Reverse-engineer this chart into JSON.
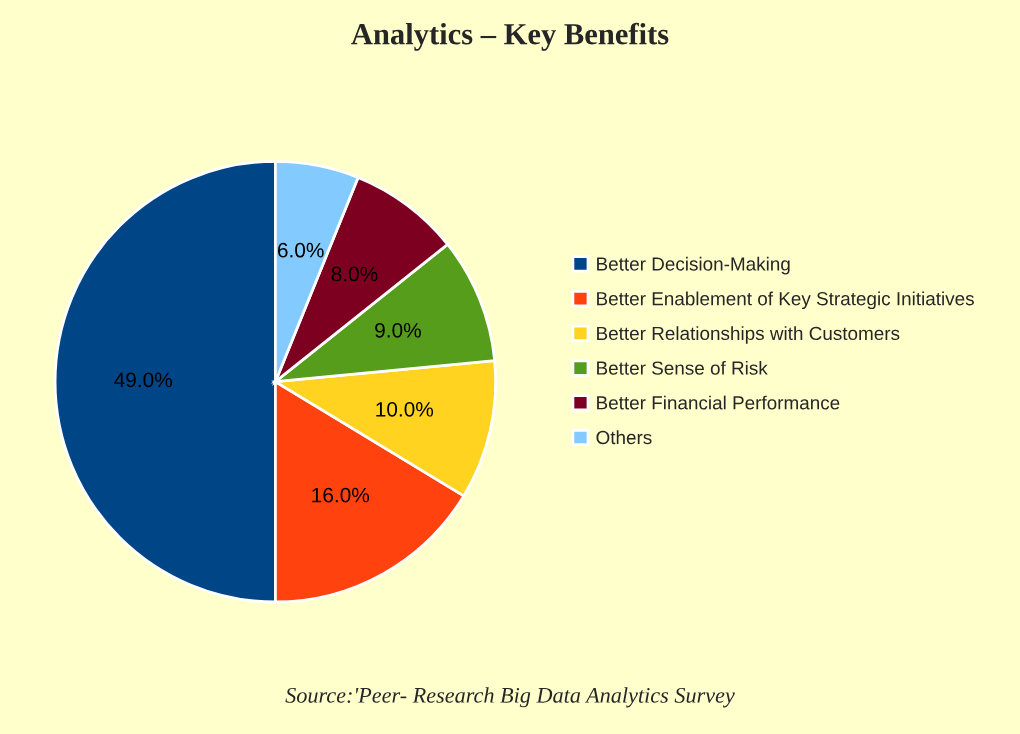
{
  "chart_data": {
    "type": "pie",
    "title": "Analytics – Key Benefits",
    "categories": [
      "Better Decision-Making",
      "Better Enablement of Key Strategic Initiatives",
      "Better Relationships with Customers",
      "Better Sense of Risk",
      "Better Financial Performance",
      "Others"
    ],
    "values": [
      49,
      16,
      10,
      9,
      8,
      6
    ],
    "colors": [
      "#004586",
      "#ff420e",
      "#ffd320",
      "#579d1c",
      "#7e0021",
      "#83caff"
    ],
    "value_labels": [
      "49.0%",
      "16.0%",
      "10.0%",
      "9.0%",
      "8.0%",
      "6.0%"
    ],
    "legend": "right",
    "annotations": [
      "Source:'Peer- Research Big Data Analytics Survey"
    ]
  }
}
